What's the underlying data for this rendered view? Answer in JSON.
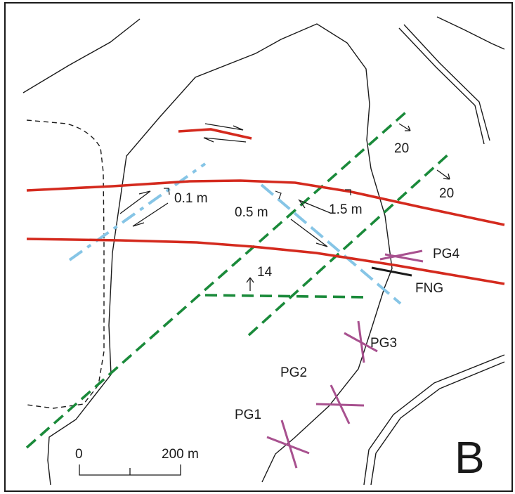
{
  "map": {
    "panel_letter": "B",
    "colors": {
      "fault_red": "#d42a1e",
      "fracture_green": "#1a8a3a",
      "dyke_blue": "#86c5e6",
      "sample_purple": "#a8518f",
      "line_black": "#1a1a1a"
    },
    "offset_labels": {
      "offset_west": "0.1 m",
      "offset_mid": "0.5 m",
      "offset_east": "1.5 m"
    },
    "dip_labels": {
      "dip_ne_1": "20",
      "dip_ne_2": "20",
      "dip_center": "14"
    },
    "site_labels": {
      "pg1": "PG1",
      "pg2": "PG2",
      "pg3": "PG3",
      "pg4": "PG4",
      "fng": "FNG"
    },
    "scale_bar": {
      "start_label": "0",
      "end_label": "200 m"
    }
  }
}
